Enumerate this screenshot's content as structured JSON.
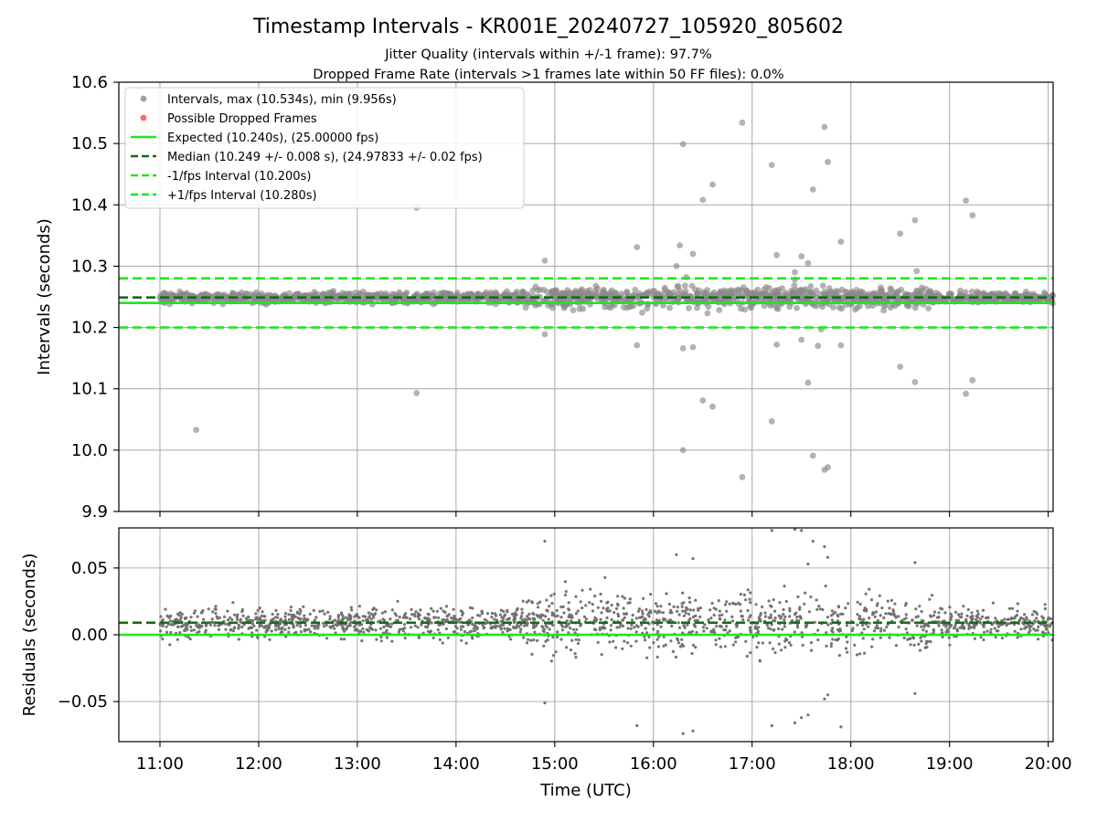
{
  "figure": {
    "title": "Timestamp Intervals - KR001E_20240727_105920_805602",
    "subtitle_line1": "Jitter Quality (intervals within +/-1 frame): 97.7%",
    "subtitle_line2": "Dropped Frame Rate (intervals >1 frames late within 50 FF files): 0.0%",
    "background": "#ffffff"
  },
  "chart_data": [
    {
      "type": "scatter",
      "panel": "top",
      "ylabel": "Intervals (seconds)",
      "xlabel": "",
      "xlim": [
        "10:35",
        "20:03"
      ],
      "ylim": [
        9.9,
        10.6
      ],
      "yticks": [
        9.9,
        10.0,
        10.1,
        10.2,
        10.3,
        10.4,
        10.5,
        10.6
      ],
      "ytick_labels": [
        "9.9",
        "10.0",
        "10.1",
        "10.2",
        "10.3",
        "10.4",
        "10.5",
        "10.6"
      ],
      "xticks": [
        "11:00",
        "12:00",
        "13:00",
        "14:00",
        "15:00",
        "16:00",
        "17:00",
        "18:00",
        "19:00",
        "20:00"
      ],
      "grid": true,
      "legend_position": "top-left",
      "legend": [
        {
          "label": "Intervals, max (10.534s), min (9.956s)",
          "kind": "marker",
          "color": "#a0a0a0"
        },
        {
          "label": "Possible Dropped Frames",
          "kind": "marker",
          "color": "#ff6b6b"
        },
        {
          "label": "Expected (10.240s), (25.00000 fps)",
          "kind": "line",
          "color": "#1ee61e"
        },
        {
          "label": "Median (10.249 +/- 0.008 s), (24.97833 +/- 0.02 fps)",
          "kind": "dashed",
          "color": "#126b12"
        },
        {
          "label": "-1/fps Interval (10.200s)",
          "kind": "dashed",
          "color": "#1ee61e"
        },
        {
          "label": "+1/fps Interval (10.280s)",
          "kind": "dashed",
          "color": "#1ee61e"
        }
      ],
      "lines": [
        {
          "name": "expected",
          "y": 10.24,
          "style": "solid",
          "color": "#1ee61e"
        },
        {
          "name": "median",
          "y": 10.249,
          "style": "dashed",
          "color": "#126b12"
        },
        {
          "name": "minus-1-fps",
          "y": 10.2,
          "style": "dashed",
          "color": "#1ee61e"
        },
        {
          "name": "plus-1-fps",
          "y": 10.28,
          "style": "dashed",
          "color": "#1ee61e"
        }
      ],
      "points": [
        {
          "x": "11:22",
          "y": 10.033
        },
        {
          "x": "13:36",
          "y": 10.093
        },
        {
          "x": "13:36",
          "y": 10.395
        },
        {
          "x": "14:54",
          "y": 10.309
        },
        {
          "x": "14:54",
          "y": 10.189
        },
        {
          "x": "15:50",
          "y": 10.331
        },
        {
          "x": "15:50",
          "y": 10.171
        },
        {
          "x": "16:16",
          "y": 10.334
        },
        {
          "x": "16:18",
          "y": 10.166
        },
        {
          "x": "16:14",
          "y": 10.3
        },
        {
          "x": "16:18",
          "y": 10.499
        },
        {
          "x": "16:18",
          "y": 10.0
        },
        {
          "x": "16:24",
          "y": 10.32
        },
        {
          "x": "16:24",
          "y": 10.168
        },
        {
          "x": "16:30",
          "y": 10.408
        },
        {
          "x": "16:30",
          "y": 10.081
        },
        {
          "x": "16:36",
          "y": 10.433
        },
        {
          "x": "16:36",
          "y": 10.071
        },
        {
          "x": "16:54",
          "y": 10.534
        },
        {
          "x": "16:54",
          "y": 9.956
        },
        {
          "x": "17:12",
          "y": 10.465
        },
        {
          "x": "17:12",
          "y": 10.047
        },
        {
          "x": "17:15",
          "y": 10.318
        },
        {
          "x": "17:15",
          "y": 10.172
        },
        {
          "x": "17:26",
          "y": 10.278
        },
        {
          "x": "17:30",
          "y": 10.316
        },
        {
          "x": "17:30",
          "y": 10.18
        },
        {
          "x": "17:34",
          "y": 10.11
        },
        {
          "x": "17:37",
          "y": 10.425
        },
        {
          "x": "17:37",
          "y": 9.991
        },
        {
          "x": "17:44",
          "y": 10.527
        },
        {
          "x": "17:44",
          "y": 9.968
        },
        {
          "x": "17:46",
          "y": 10.47
        },
        {
          "x": "17:46",
          "y": 9.972
        },
        {
          "x": "17:54",
          "y": 10.34
        },
        {
          "x": "17:54",
          "y": 10.171
        },
        {
          "x": "17:34",
          "y": 10.305
        },
        {
          "x": "17:26",
          "y": 10.29
        },
        {
          "x": "17:40",
          "y": 10.17
        },
        {
          "x": "18:30",
          "y": 10.353
        },
        {
          "x": "18:30",
          "y": 10.136
        },
        {
          "x": "18:39",
          "y": 10.375
        },
        {
          "x": "18:39",
          "y": 10.111
        },
        {
          "x": "19:10",
          "y": 10.407
        },
        {
          "x": "19:10",
          "y": 10.092
        },
        {
          "x": "19:14",
          "y": 10.383
        },
        {
          "x": "19:14",
          "y": 10.114
        },
        {
          "x": "18:40",
          "y": 10.292
        },
        {
          "x": "17:42",
          "y": 10.197
        },
        {
          "x": "16:20",
          "y": 10.282
        }
      ],
      "band": {
        "center": 10.249,
        "spread": 0.016,
        "description": "dense cloud of intervals"
      }
    },
    {
      "type": "scatter",
      "panel": "bottom",
      "ylabel": "Residuals (seconds)",
      "xlabel": "Time (UTC)",
      "xlim": [
        "10:35",
        "20:03"
      ],
      "ylim": [
        -0.08,
        0.08
      ],
      "yticks": [
        0.05,
        0.0,
        -0.05
      ],
      "ytick_labels": [
        "0.05",
        "0.00",
        "−0.05"
      ],
      "xticks": [
        "11:00",
        "12:00",
        "13:00",
        "14:00",
        "15:00",
        "16:00",
        "17:00",
        "18:00",
        "19:00",
        "20:00"
      ],
      "grid": true,
      "lines": [
        {
          "name": "median-residual",
          "y": 0.009,
          "style": "dashed",
          "color": "#126b12"
        },
        {
          "name": "zero-residual",
          "y": 0.0,
          "style": "solid",
          "color": "#1ee61e"
        }
      ],
      "points": [
        {
          "x": "14:54",
          "y": 0.07
        },
        {
          "x": "14:54",
          "y": -0.051
        },
        {
          "x": "15:50",
          "y": -0.068
        },
        {
          "x": "16:14",
          "y": 0.06
        },
        {
          "x": "16:18",
          "y": -0.074
        },
        {
          "x": "16:24",
          "y": -0.072
        },
        {
          "x": "16:24",
          "y": 0.057
        },
        {
          "x": "17:12",
          "y": 0.078
        },
        {
          "x": "17:12",
          "y": -0.068
        },
        {
          "x": "17:26",
          "y": 0.079
        },
        {
          "x": "17:30",
          "y": 0.078
        },
        {
          "x": "17:26",
          "y": -0.066
        },
        {
          "x": "17:34",
          "y": -0.06
        },
        {
          "x": "17:37",
          "y": 0.07
        },
        {
          "x": "17:44",
          "y": -0.048
        },
        {
          "x": "17:44",
          "y": 0.066
        },
        {
          "x": "17:46",
          "y": 0.058
        },
        {
          "x": "17:46",
          "y": -0.045
        },
        {
          "x": "17:54",
          "y": -0.069
        },
        {
          "x": "18:39",
          "y": 0.054
        },
        {
          "x": "18:39",
          "y": -0.044
        },
        {
          "x": "17:34",
          "y": 0.053
        },
        {
          "x": "17:30",
          "y": -0.062
        }
      ],
      "band": {
        "center": 0.009,
        "spread": 0.016,
        "description": "dense cloud of residuals"
      }
    }
  ]
}
